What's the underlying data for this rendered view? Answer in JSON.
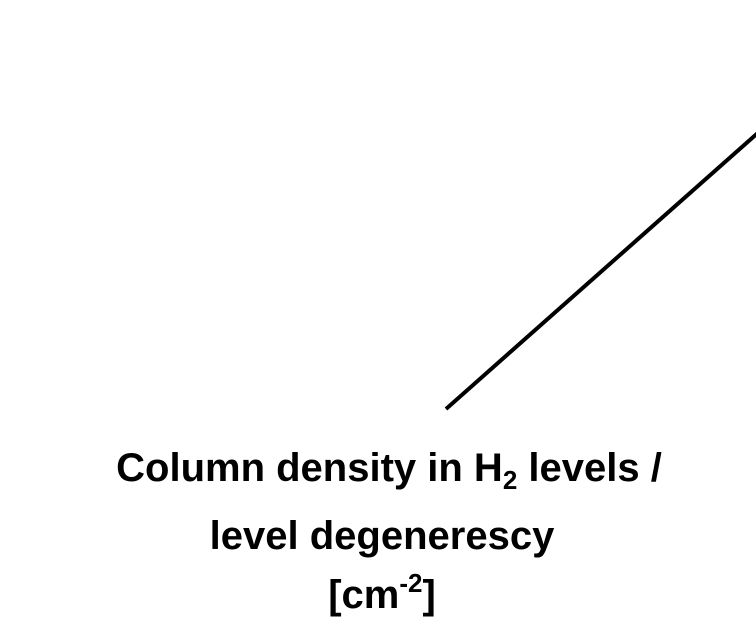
{
  "label": {
    "line1": {
      "before": "Column density in H",
      "sub": "2",
      "after": " levels /"
    },
    "line2": "level degenerescy",
    "line3": {
      "before": "[cm",
      "sup": "-2",
      "after": "]"
    }
  }
}
